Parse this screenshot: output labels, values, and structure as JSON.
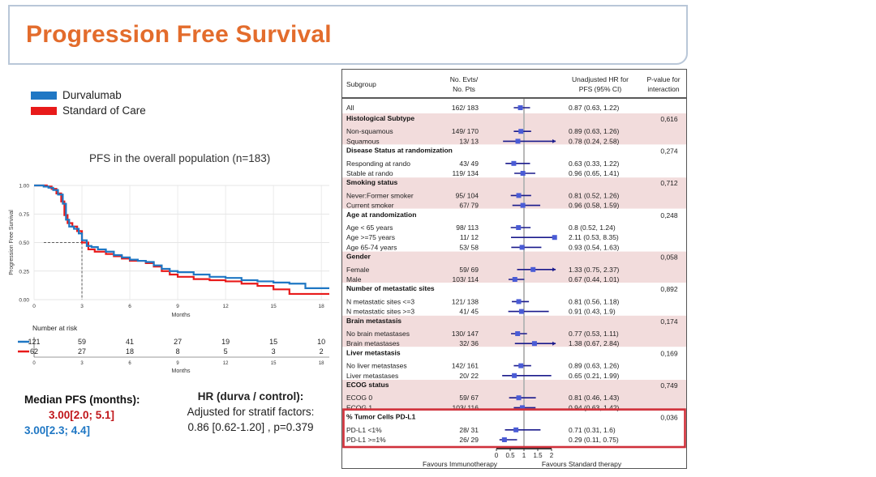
{
  "title": "Progression Free Survival",
  "legend": [
    {
      "label": "Durvalumab",
      "color": "#1f77c4"
    },
    {
      "label": "Standard of Care",
      "color": "#e81a1a"
    }
  ],
  "km": {
    "title": "PFS in the overall population (n=183)",
    "ylabel": "Progression Free Survival",
    "xlabel": "Months",
    "yticks": [
      "0.00",
      "0.25",
      "0.50",
      "0.75",
      "1.00"
    ],
    "xticks": [
      "0",
      "3",
      "6",
      "9",
      "12",
      "15",
      "18"
    ],
    "risk_title": "Number at risk",
    "risk_xlabel": "Months",
    "risk_durva": [
      "121",
      "59",
      "41",
      "27",
      "19",
      "15",
      "10"
    ],
    "risk_soc": [
      "62",
      "27",
      "18",
      "8",
      "5",
      "3",
      "2"
    ]
  },
  "median": {
    "label": "Median PFS (months):",
    "soc": "3.00[2.0; 5.1]",
    "durva": "3.00[2.3; 4.4]",
    "soc_color": "#c0161a",
    "durva_color": "#1f77c4"
  },
  "hr": {
    "title": "HR (durva / control):",
    "line1": "Adjusted for stratif factors:",
    "line2": "0.86 [0.62-1.20]  , p=0.379"
  },
  "forest": {
    "headers": {
      "subgroup": "Subgroup",
      "evts1": "No. Evts/",
      "evts2": "No. Pts",
      "hr1": "Unadjusted HR for",
      "hr2": "PFS (95% CI)",
      "p1": "P-value for",
      "p2": "interaction"
    },
    "axis_ticks": [
      "0",
      "0.5",
      "1",
      "1.5",
      "2"
    ],
    "favours_left": "Favours Immunotherapy",
    "favours_right": "Favours Standard therapy",
    "highlight_color": "#d0303a",
    "shade_color": "#f2dcdc"
  },
  "chart_data": [
    {
      "type": "line",
      "title": "PFS in the overall population (n=183)",
      "xlabel": "Months",
      "ylabel": "Progression Free Survival",
      "xlim": [
        0,
        18.5
      ],
      "ylim": [
        0,
        1
      ],
      "series": [
        {
          "name": "Durvalumab",
          "color": "#1f77c4",
          "points": [
            [
              0,
              1
            ],
            [
              0.3,
              1
            ],
            [
              0.6,
              0.99
            ],
            [
              0.9,
              0.98
            ],
            [
              1.2,
              0.96
            ],
            [
              1.5,
              0.92
            ],
            [
              1.8,
              0.84
            ],
            [
              2.0,
              0.7
            ],
            [
              2.2,
              0.64
            ],
            [
              2.5,
              0.62
            ],
            [
              2.8,
              0.58
            ],
            [
              3.0,
              0.52
            ],
            [
              3.3,
              0.47
            ],
            [
              3.6,
              0.46
            ],
            [
              4.0,
              0.44
            ],
            [
              4.5,
              0.42
            ],
            [
              5.0,
              0.39
            ],
            [
              5.5,
              0.37
            ],
            [
              6.0,
              0.35
            ],
            [
              6.5,
              0.34
            ],
            [
              7.0,
              0.33
            ],
            [
              7.5,
              0.3
            ],
            [
              8.0,
              0.27
            ],
            [
              8.5,
              0.25
            ],
            [
              9.0,
              0.24
            ],
            [
              10.0,
              0.22
            ],
            [
              11.0,
              0.2
            ],
            [
              12.0,
              0.19
            ],
            [
              13.0,
              0.17
            ],
            [
              14.0,
              0.16
            ],
            [
              15.0,
              0.15
            ],
            [
              16.0,
              0.14
            ],
            [
              17.0,
              0.1
            ],
            [
              18.5,
              0.1
            ]
          ]
        },
        {
          "name": "Standard of Care",
          "color": "#e81a1a",
          "points": [
            [
              0,
              1
            ],
            [
              0.4,
              1
            ],
            [
              0.8,
              0.99
            ],
            [
              1.1,
              0.97
            ],
            [
              1.4,
              0.93
            ],
            [
              1.7,
              0.86
            ],
            [
              1.9,
              0.74
            ],
            [
              2.1,
              0.67
            ],
            [
              2.4,
              0.64
            ],
            [
              2.7,
              0.6
            ],
            [
              3.0,
              0.5
            ],
            [
              3.4,
              0.44
            ],
            [
              3.8,
              0.42
            ],
            [
              4.5,
              0.4
            ],
            [
              5.0,
              0.38
            ],
            [
              5.5,
              0.36
            ],
            [
              6.0,
              0.34
            ],
            [
              6.5,
              0.34
            ],
            [
              7.0,
              0.32
            ],
            [
              7.5,
              0.29
            ],
            [
              8.0,
              0.25
            ],
            [
              8.5,
              0.22
            ],
            [
              9.0,
              0.2
            ],
            [
              10.0,
              0.18
            ],
            [
              11.0,
              0.17
            ],
            [
              12.0,
              0.16
            ],
            [
              13.0,
              0.14
            ],
            [
              14.0,
              0.12
            ],
            [
              15.0,
              0.09
            ],
            [
              16.0,
              0.05
            ],
            [
              18.5,
              0.05
            ]
          ]
        }
      ],
      "median_reference": {
        "x": 3,
        "y": 0.5
      }
    },
    {
      "type": "forest",
      "xlim": [
        0,
        2
      ],
      "reference": 1,
      "rows": [
        {
          "label": "All",
          "evts": "162/ 183",
          "hr_text": "0.87 (0.63, 1.22)",
          "hr": 0.87,
          "lo": 0.63,
          "hi": 1.22,
          "shade": false
        },
        {
          "label": "Histological Subtype",
          "group": true,
          "p": "0,616",
          "shade": true
        },
        {
          "label": "Non-squamous",
          "evts": "149/ 170",
          "hr_text": "0.89 (0.63, 1.26)",
          "hr": 0.89,
          "lo": 0.63,
          "hi": 1.26,
          "shade": true
        },
        {
          "label": "Squamous",
          "evts": "13/ 13",
          "hr_text": "0.78 (0.24, 2.58)",
          "hr": 0.78,
          "lo": 0.24,
          "hi": 2.58,
          "shade": true
        },
        {
          "label": "Disease Status at randomization",
          "group": true,
          "p": "0,274",
          "shade": false
        },
        {
          "label": "Responding at rando",
          "evts": "43/ 49",
          "hr_text": "0.63 (0.33, 1.22)",
          "hr": 0.63,
          "lo": 0.33,
          "hi": 1.22,
          "shade": false
        },
        {
          "label": "Stable at rando",
          "evts": "119/ 134",
          "hr_text": "0.96 (0.65, 1.41)",
          "hr": 0.96,
          "lo": 0.65,
          "hi": 1.41,
          "shade": false
        },
        {
          "label": "Smoking status",
          "group": true,
          "p": "0,712",
          "shade": true
        },
        {
          "label": "Never:Former smoker",
          "evts": "95/ 104",
          "hr_text": "0.81 (0.52, 1.26)",
          "hr": 0.81,
          "lo": 0.52,
          "hi": 1.26,
          "shade": true
        },
        {
          "label": "Current smoker",
          "evts": "67/ 79",
          "hr_text": "0.96 (0.58, 1.59)",
          "hr": 0.96,
          "lo": 0.58,
          "hi": 1.59,
          "shade": true
        },
        {
          "label": "Age at randomization",
          "group": true,
          "p": "0,248",
          "shade": false
        },
        {
          "label": "Age < 65 years",
          "evts": "98/ 113",
          "hr_text": "0.8 (0.52, 1.24)",
          "hr": 0.8,
          "lo": 0.52,
          "hi": 1.24,
          "shade": false
        },
        {
          "label": "Age >=75 years",
          "evts": "11/ 12",
          "hr_text": "2.11 (0.53, 8.35)",
          "hr": 2.11,
          "lo": 0.53,
          "hi": 8.35,
          "shade": false
        },
        {
          "label": "Age 65-74 years",
          "evts": "53/ 58",
          "hr_text": "0.93 (0.54, 1.63)",
          "hr": 0.93,
          "lo": 0.54,
          "hi": 1.63,
          "shade": false
        },
        {
          "label": "Gender",
          "group": true,
          "p": "0,058",
          "shade": true
        },
        {
          "label": "Female",
          "evts": "59/ 69",
          "hr_text": "1.33 (0.75, 2.37)",
          "hr": 1.33,
          "lo": 0.75,
          "hi": 2.37,
          "shade": true
        },
        {
          "label": "Male",
          "evts": "103/ 114",
          "hr_text": "0.67 (0.44, 1.01)",
          "hr": 0.67,
          "lo": 0.44,
          "hi": 1.01,
          "shade": true
        },
        {
          "label": "Number of metastatic sites",
          "group": true,
          "p": "0,892",
          "shade": false
        },
        {
          "label": "N metastatic sites <=3",
          "evts": "121/ 138",
          "hr_text": "0.81 (0.56, 1.18)",
          "hr": 0.81,
          "lo": 0.56,
          "hi": 1.18,
          "shade": false
        },
        {
          "label": "N metastatic sites >=3",
          "evts": "41/ 45",
          "hr_text": "0.91 (0.43, 1.9)",
          "hr": 0.91,
          "lo": 0.43,
          "hi": 1.9,
          "shade": false
        },
        {
          "label": "Brain metastasis",
          "group": true,
          "p": "0,174",
          "shade": true
        },
        {
          "label": "No brain metastases",
          "evts": "130/ 147",
          "hr_text": "0.77 (0.53, 1.11)",
          "hr": 0.77,
          "lo": 0.53,
          "hi": 1.11,
          "shade": true
        },
        {
          "label": "Brain metastases",
          "evts": "32/ 36",
          "hr_text": "1.38 (0.67, 2.84)",
          "hr": 1.38,
          "lo": 0.67,
          "hi": 2.84,
          "shade": true
        },
        {
          "label": "Liver metastasis",
          "group": true,
          "p": "0,169",
          "shade": false
        },
        {
          "label": "No liver metastases",
          "evts": "142/ 161",
          "hr_text": "0.89 (0.63, 1.26)",
          "hr": 0.89,
          "lo": 0.63,
          "hi": 1.26,
          "shade": false
        },
        {
          "label": "Liver metastases",
          "evts": "20/ 22",
          "hr_text": "0.65 (0.21, 1.99)",
          "hr": 0.65,
          "lo": 0.21,
          "hi": 1.99,
          "shade": false
        },
        {
          "label": "ECOG status",
          "group": true,
          "p": "0,749",
          "shade": true
        },
        {
          "label": "ECOG 0",
          "evts": "59/ 67",
          "hr_text": "0.81 (0.46, 1.43)",
          "hr": 0.81,
          "lo": 0.46,
          "hi": 1.43,
          "shade": true
        },
        {
          "label": "ECOG 1",
          "evts": "103/ 116",
          "hr_text": "0.94 (0.63, 1.42)",
          "hr": 0.94,
          "lo": 0.63,
          "hi": 1.42,
          "shade": true
        },
        {
          "label": "% Tumor Cells PD-L1",
          "group": true,
          "p": "0,036",
          "shade": false,
          "highlight": true
        },
        {
          "label": "PD-L1 <1%",
          "evts": "28/ 31",
          "hr_text": "0.71 (0.31, 1.6)",
          "hr": 0.71,
          "lo": 0.31,
          "hi": 1.6,
          "shade": false,
          "highlight": true
        },
        {
          "label": "PD-L1 >=1%",
          "evts": "26/ 29",
          "hr_text": "0.29 (0.11, 0.75)",
          "hr": 0.29,
          "lo": 0.11,
          "hi": 0.75,
          "shade": false,
          "highlight": true
        }
      ]
    }
  ]
}
